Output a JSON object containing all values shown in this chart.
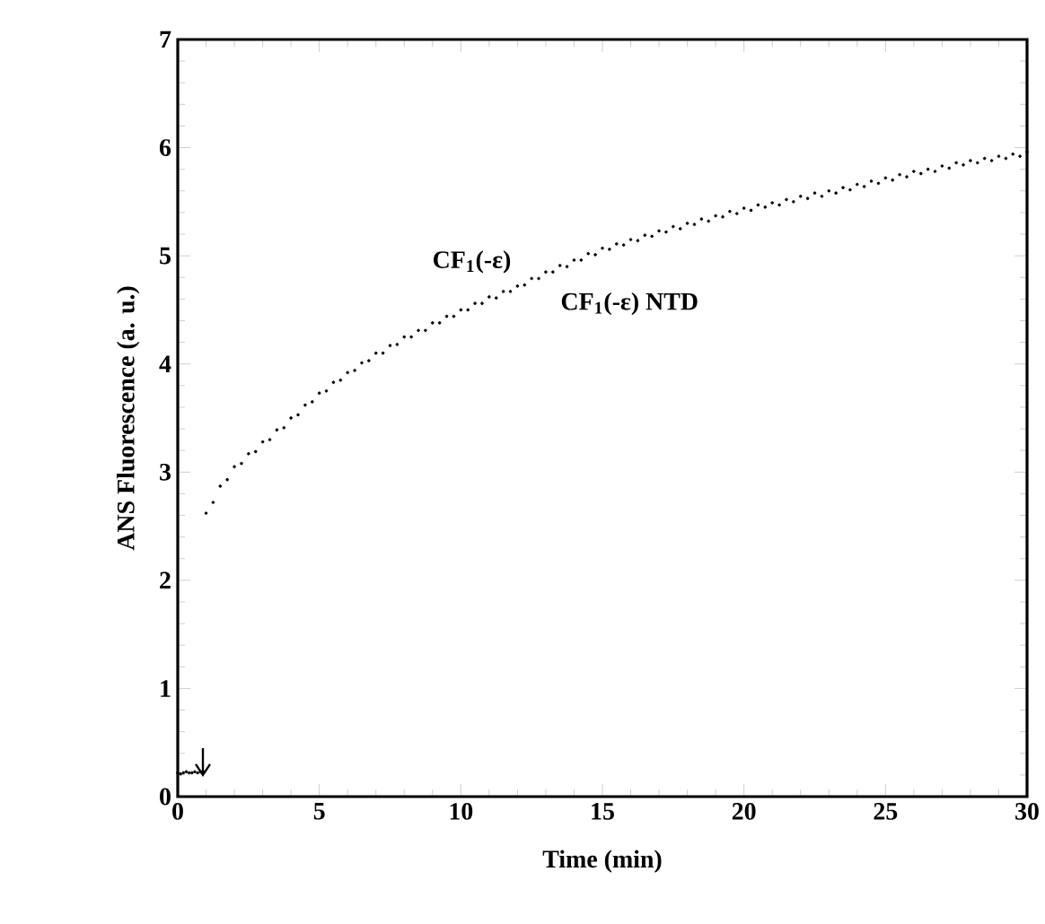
{
  "chart_data": {
    "type": "scatter",
    "xlabel": "Time (min)",
    "ylabel": "ANS Fluorescence (a. u.)",
    "xlim": [
      0,
      30
    ],
    "ylim": [
      0,
      7
    ],
    "xticks": [
      0,
      5,
      10,
      15,
      20,
      25,
      30
    ],
    "yticks": [
      0,
      1,
      2,
      3,
      4,
      5,
      6,
      7
    ],
    "marker": "circle",
    "series": [
      {
        "name": "CF$_{1}$(-ε)",
        "color": "#000000",
        "x": [
          0,
          0.1,
          0.2,
          0.3,
          0.4,
          0.5,
          0.6,
          0.7,
          0.8,
          0.9,
          1,
          1.5,
          2,
          2.5,
          3,
          3.5,
          4,
          4.5,
          5,
          5.5,
          6,
          6.5,
          7,
          7.5,
          8,
          8.5,
          9,
          9.5,
          10,
          10.5,
          11,
          11.5,
          12,
          12.5,
          13,
          13.5,
          14,
          14.5,
          15,
          15.5,
          16,
          16.5,
          17,
          17.5,
          18,
          18.5,
          19,
          19.5,
          20,
          20.5,
          21,
          21.5,
          22,
          22.5,
          23,
          23.5,
          24,
          24.5,
          25,
          25.5,
          26,
          26.5,
          27,
          27.5,
          28,
          28.5,
          29,
          29.5,
          30
        ],
        "values": [
          0.22,
          0.21,
          0.22,
          0.23,
          0.22,
          0.22,
          0.23,
          0.22,
          0.23,
          0.23,
          2.62,
          2.87,
          3.05,
          3.17,
          3.28,
          3.39,
          3.5,
          3.62,
          3.73,
          3.83,
          3.92,
          4.01,
          4.1,
          4.17,
          4.25,
          4.31,
          4.38,
          4.44,
          4.5,
          4.56,
          4.62,
          4.67,
          4.72,
          4.79,
          4.85,
          4.91,
          4.96,
          5.02,
          5.07,
          5.11,
          5.15,
          5.19,
          5.23,
          5.27,
          5.3,
          5.34,
          5.37,
          5.41,
          5.44,
          5.47,
          5.49,
          5.52,
          5.55,
          5.58,
          5.6,
          5.63,
          5.66,
          5.69,
          5.72,
          5.75,
          5.78,
          5.8,
          5.83,
          5.86,
          5.88,
          5.9,
          5.92,
          5.94,
          5.96
        ]
      },
      {
        "name": "CF$_{1}$(-ε) NTD",
        "color": "#000000",
        "x": [
          1.25,
          1.75,
          2.25,
          2.75,
          3.25,
          3.75,
          4.25,
          4.75,
          5.25,
          5.75,
          6.25,
          6.75,
          7.25,
          7.75,
          8.25,
          8.75,
          9.25,
          9.75,
          10.25,
          10.75,
          11.25,
          11.75,
          12.25,
          12.75,
          13.25,
          13.75,
          14.25,
          14.75,
          15.25,
          15.75,
          16.25,
          16.75,
          17.25,
          17.75,
          18.25,
          18.75,
          19.25,
          19.75,
          20.25,
          20.75,
          21.25,
          21.75,
          22.25,
          22.75,
          23.25,
          23.75,
          24.25,
          24.75,
          25.25,
          25.75,
          26.25,
          26.75,
          27.25,
          27.75,
          28.25,
          28.75,
          29.25,
          29.75
        ],
        "values": [
          2.72,
          2.93,
          3.08,
          3.19,
          3.3,
          3.41,
          3.53,
          3.65,
          3.75,
          3.85,
          3.94,
          4.03,
          4.1,
          4.18,
          4.25,
          4.31,
          4.38,
          4.44,
          4.5,
          4.56,
          4.61,
          4.67,
          4.73,
          4.79,
          4.85,
          4.9,
          4.96,
          5.01,
          5.06,
          5.1,
          5.14,
          5.18,
          5.22,
          5.25,
          5.29,
          5.32,
          5.36,
          5.39,
          5.42,
          5.45,
          5.47,
          5.5,
          5.53,
          5.55,
          5.58,
          5.61,
          5.64,
          5.67,
          5.7,
          5.73,
          5.76,
          5.78,
          5.81,
          5.84,
          5.86,
          5.88,
          5.9,
          5.92
        ]
      }
    ]
  }
}
